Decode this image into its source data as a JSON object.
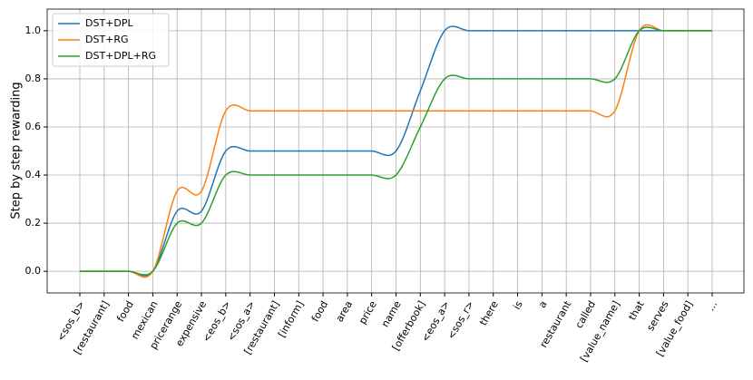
{
  "chart_data": {
    "type": "line",
    "y_label": "Step by step rewarding",
    "categories": [
      "<sos_b>",
      "[restaurant]",
      "food",
      "mexican",
      "pricerange",
      "expensive",
      "<eos_b>",
      "<sos_a>",
      "[restaurant]",
      "[inform]",
      "food",
      "area",
      "price",
      "name",
      "[offerbook]",
      "<eos_a>",
      "<sos_r>",
      "there",
      "is",
      "a",
      "restaurant",
      "called",
      "[value_name]",
      "that",
      "serves",
      "[value_food]",
      "..."
    ],
    "series": [
      {
        "name": "DST+DPL",
        "color": "#1f77b4",
        "values": [
          0,
          0,
          0,
          0,
          0.25,
          0.25,
          0.5,
          0.5,
          0.5,
          0.5,
          0.5,
          0.5,
          0.5,
          0.5,
          0.75,
          1,
          1,
          1,
          1,
          1,
          1,
          1,
          1,
          1,
          1,
          1,
          1
        ]
      },
      {
        "name": "DST+RG",
        "color": "#ff7f0e",
        "values": [
          0,
          0,
          0,
          0,
          0.333,
          0.333,
          0.667,
          0.667,
          0.667,
          0.667,
          0.667,
          0.667,
          0.667,
          0.667,
          0.667,
          0.667,
          0.667,
          0.667,
          0.667,
          0.667,
          0.667,
          0.667,
          0.667,
          1,
          1,
          1,
          1
        ]
      },
      {
        "name": "DST+DPL+RG",
        "color": "#2ca02c",
        "values": [
          0,
          0,
          0,
          0,
          0.2,
          0.2,
          0.4,
          0.4,
          0.4,
          0.4,
          0.4,
          0.4,
          0.4,
          0.4,
          0.6,
          0.8,
          0.8,
          0.8,
          0.8,
          0.8,
          0.8,
          0.8,
          0.8,
          1,
          1,
          1,
          1
        ]
      }
    ],
    "ylim": [
      -0.09,
      1.09
    ],
    "yticks": [
      {
        "value": 0,
        "label": "0.0"
      },
      0.2,
      0.4,
      0.6,
      0.8,
      {
        "value": 1,
        "label": "1.0"
      }
    ],
    "grid": true,
    "legend": "upper left"
  }
}
